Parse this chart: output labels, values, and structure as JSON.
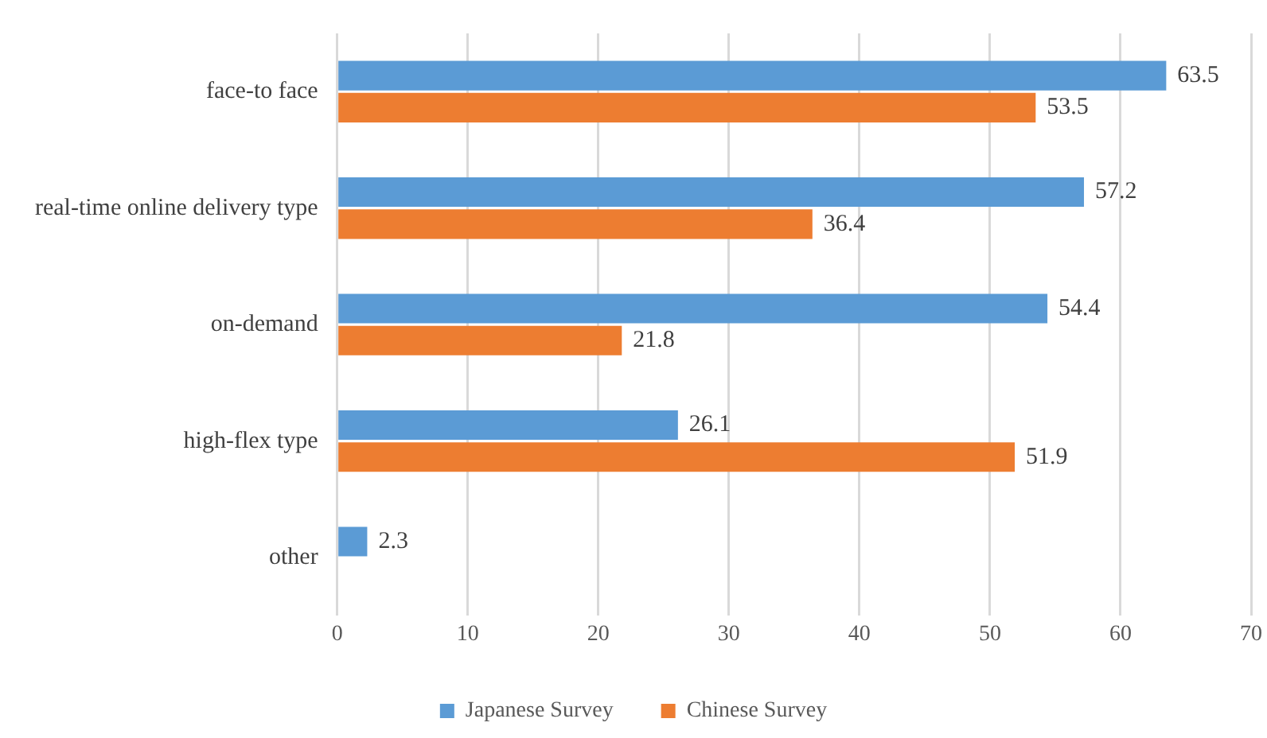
{
  "chart_data": {
    "type": "bar",
    "orientation": "horizontal",
    "categories": [
      "face-to face",
      "real-time online delivery type",
      "on-demand",
      "high-flex type",
      "other"
    ],
    "series": [
      {
        "name": "Japanese Survey",
        "color": "#5b9bd5",
        "values": [
          63.5,
          57.2,
          54.4,
          26.1,
          2.3
        ]
      },
      {
        "name": "Chinese Survey",
        "color": "#ed7d31",
        "values": [
          53.5,
          36.4,
          21.8,
          51.9,
          null
        ]
      }
    ],
    "xlim": [
      0,
      70
    ],
    "xticks": [
      0,
      10,
      20,
      30,
      40,
      50,
      60,
      70
    ],
    "grid": "x",
    "legend": "bottom",
    "data_labels": true
  }
}
